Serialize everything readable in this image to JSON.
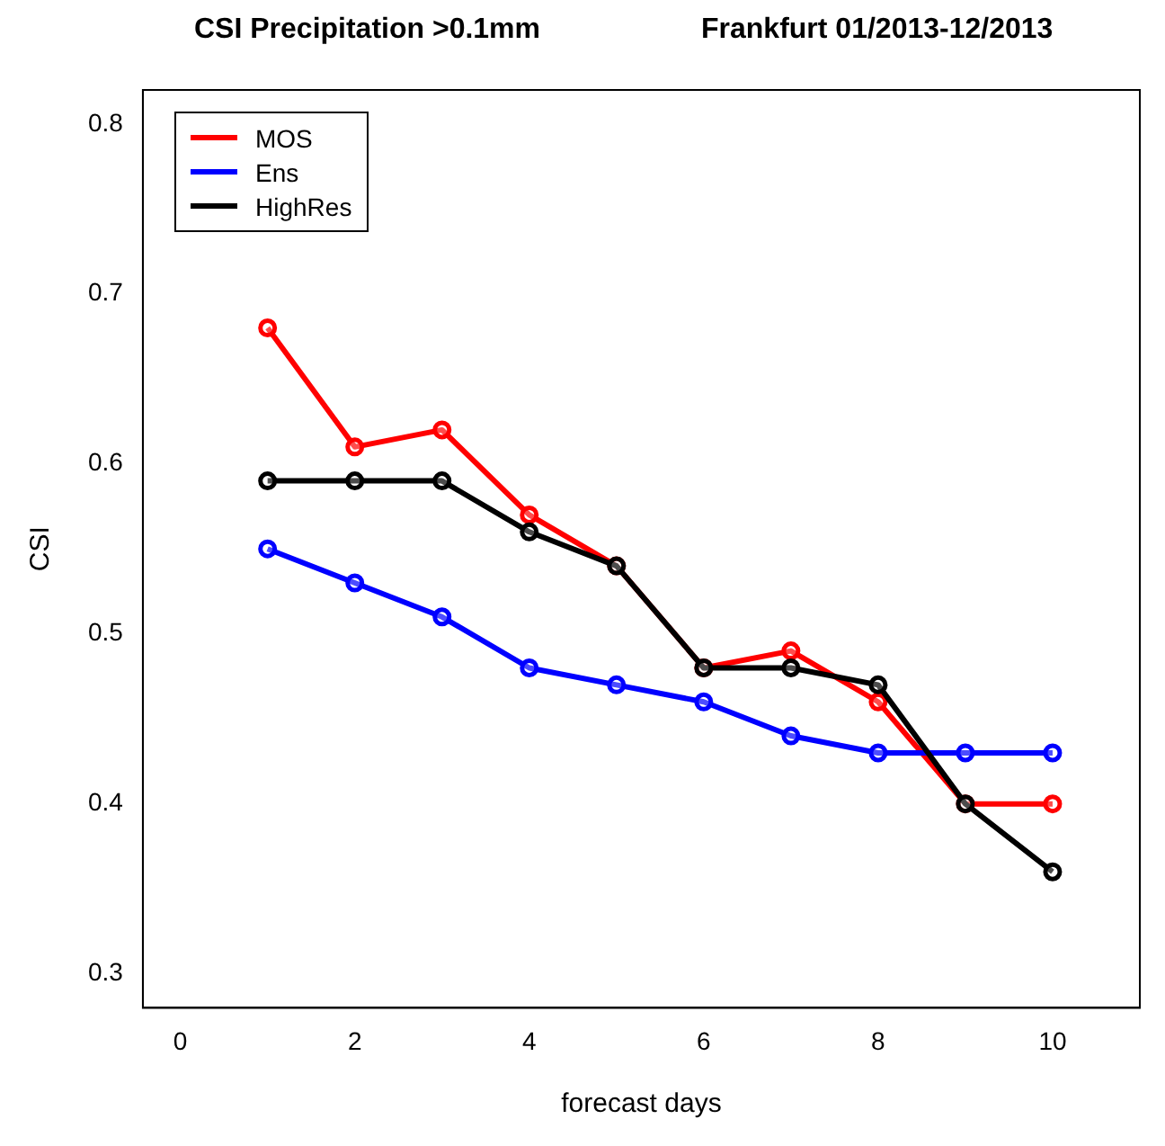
{
  "chart_data": {
    "type": "line",
    "title": "CSI Precipitation >0.1mm",
    "subtitle": "Frankfurt 01/2013-12/2013",
    "xlabel": "forecast days",
    "ylabel": "CSI",
    "x": [
      1,
      2,
      3,
      4,
      5,
      6,
      7,
      8,
      9,
      10
    ],
    "series": [
      {
        "name": "MOS",
        "color": "#ff0000",
        "values": [
          0.68,
          0.61,
          0.62,
          0.57,
          0.54,
          0.48,
          0.49,
          0.46,
          0.4,
          0.4
        ]
      },
      {
        "name": "Ens",
        "color": "#0000ff",
        "values": [
          0.55,
          0.53,
          0.51,
          0.48,
          0.47,
          0.46,
          0.44,
          0.43,
          0.43,
          0.43
        ]
      },
      {
        "name": "HighRes",
        "color": "#000000",
        "values": [
          0.59,
          0.59,
          0.59,
          0.56,
          0.54,
          0.48,
          0.48,
          0.47,
          0.4,
          0.36
        ]
      }
    ],
    "xlim": [
      -0.43,
      11.0
    ],
    "xticks": [
      0,
      2,
      4,
      6,
      8,
      10
    ],
    "ylim": [
      0.28,
      0.82
    ],
    "yticks": [
      0.3,
      0.4,
      0.5,
      0.6,
      0.7,
      0.8
    ],
    "grid": false,
    "legend": "top left",
    "marker": "circle",
    "line_style": "solid"
  }
}
